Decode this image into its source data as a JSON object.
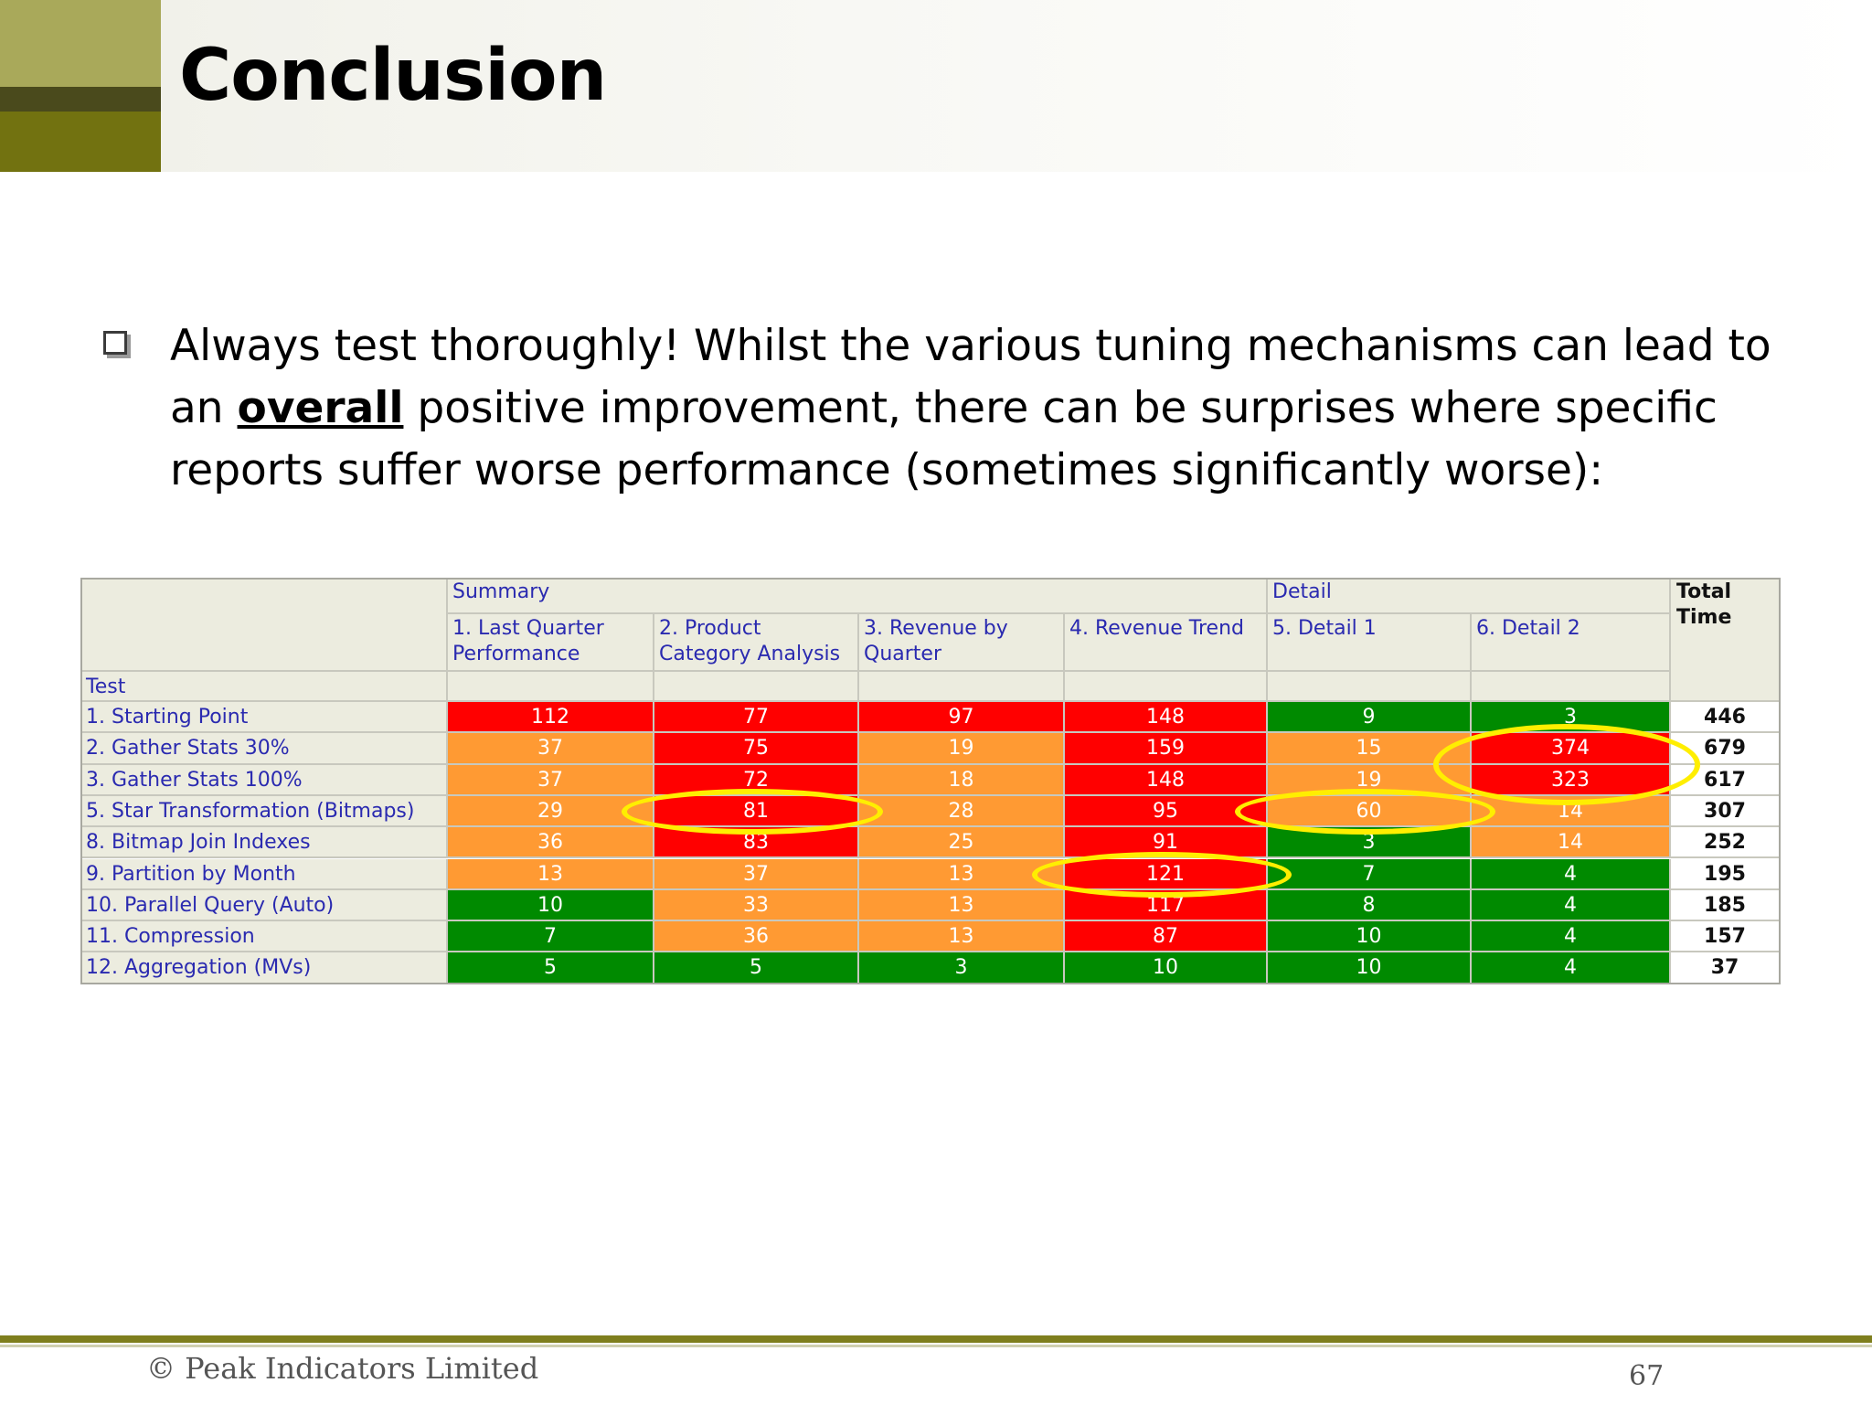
{
  "slide": {
    "title": "Conclusion",
    "bullet": {
      "part1": "Always test thoroughly!  Whilst the various tuning mechanisms can lead to an ",
      "emphasis": "overall",
      "part2": " positive improvement, there can be surprises where specific reports suffer worse performance (sometimes significantly worse):"
    }
  },
  "table": {
    "corner_label": "",
    "groups": {
      "summary": "Summary",
      "detail": "Detail"
    },
    "total_label": "Total Time",
    "test_label": "Test",
    "columns": [
      "1. Last Quarter Performance",
      "2. Product Category Analysis",
      "3. Revenue by Quarter",
      "4. Revenue Trend",
      "5. Detail 1",
      "6. Detail 2"
    ],
    "rows": [
      {
        "label": "1. Starting Point",
        "values": [
          112,
          77,
          97,
          148,
          9,
          3
        ],
        "colors": [
          "red",
          "red",
          "red",
          "red",
          "green",
          "green"
        ],
        "total": 446
      },
      {
        "label": "2. Gather Stats 30%",
        "values": [
          37,
          75,
          19,
          159,
          15,
          374
        ],
        "colors": [
          "orange",
          "red",
          "orange",
          "red",
          "orange",
          "red"
        ],
        "total": 679
      },
      {
        "label": "3. Gather Stats 100%",
        "values": [
          37,
          72,
          18,
          148,
          19,
          323
        ],
        "colors": [
          "orange",
          "red",
          "orange",
          "red",
          "orange",
          "red"
        ],
        "total": 617
      },
      {
        "label": "5. Star Transformation (Bitmaps)",
        "values": [
          29,
          81,
          28,
          95,
          60,
          14
        ],
        "colors": [
          "orange",
          "red",
          "orange",
          "red",
          "orange",
          "orange"
        ],
        "total": 307
      },
      {
        "label": "8. Bitmap Join Indexes",
        "values": [
          36,
          83,
          25,
          91,
          3,
          14
        ],
        "colors": [
          "orange",
          "red",
          "orange",
          "red",
          "green",
          "orange"
        ],
        "total": 252
      },
      {
        "label": "9. Partition by Month",
        "values": [
          13,
          37,
          13,
          121,
          7,
          4
        ],
        "colors": [
          "orange",
          "orange",
          "orange",
          "red",
          "green",
          "green"
        ],
        "total": 195
      },
      {
        "label": "10. Parallel Query (Auto)",
        "values": [
          10,
          33,
          13,
          117,
          8,
          4
        ],
        "colors": [
          "green",
          "orange",
          "orange",
          "red",
          "green",
          "green"
        ],
        "total": 185
      },
      {
        "label": "11. Compression",
        "values": [
          7,
          36,
          13,
          87,
          10,
          4
        ],
        "colors": [
          "green",
          "orange",
          "orange",
          "red",
          "green",
          "green"
        ],
        "total": 157
      },
      {
        "label": "12. Aggregation (MVs)",
        "values": [
          5,
          5,
          3,
          10,
          10,
          4
        ],
        "colors": [
          "green",
          "green",
          "green",
          "green",
          "green",
          "green"
        ],
        "total": 37
      }
    ],
    "highlights": [
      {
        "row": 3,
        "col": 1
      },
      {
        "row": 3,
        "col": 4
      },
      {
        "row": 5,
        "col": 3
      },
      {
        "row": 1,
        "col": 5,
        "span_rows": 2
      }
    ]
  },
  "footer": {
    "copyright": "© Peak Indicators Limited",
    "page_number": "67"
  }
}
